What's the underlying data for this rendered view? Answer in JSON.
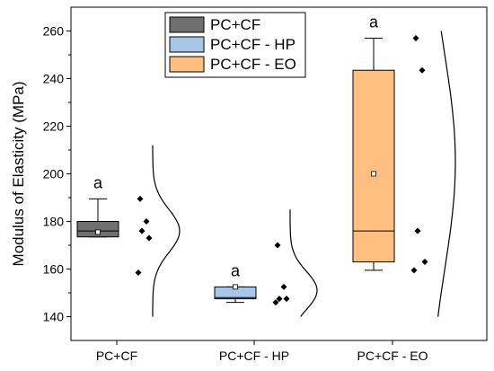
{
  "chart_data": {
    "type": "box",
    "ylabel": "Modulus of Elasticity (MPa)",
    "xlabel": "",
    "ylim": [
      130,
      270
    ],
    "yticks": [
      140,
      160,
      180,
      200,
      220,
      240,
      260
    ],
    "legend_position": "top-center",
    "grid": false,
    "colors": {
      "PC+CF": "#6f6f6f",
      "PC+CF - HP": "#a8c6e8",
      "PC+CF - EO": "#ffbf80"
    },
    "series": [
      {
        "name": "PC+CF",
        "category": "PC+CF",
        "box": {
          "whisker_low": 173.5,
          "q1": 173.5,
          "median": 176,
          "q3": 180,
          "whisker_high": 189.5,
          "mean": 175.5
        },
        "points": [
          158.5,
          173,
          176,
          180,
          189.5
        ],
        "density": {
          "center": 176,
          "sd": 9,
          "y_from": 140,
          "y_to": 212
        },
        "significance_label": "a"
      },
      {
        "name": "PC+CF - HP",
        "category": "PC+CF - HP",
        "box": {
          "whisker_low": 146,
          "q1": 147.5,
          "median": 148,
          "q3": 152.5,
          "whisker_high": 152.5,
          "mean": 152.5
        },
        "points": [
          146,
          147.5,
          147.5,
          152.5,
          170
        ],
        "density": {
          "center": 151,
          "sd": 8,
          "y_from": 140,
          "y_to": 185
        },
        "significance_label": "a"
      },
      {
        "name": "PC+CF - EO",
        "category": "PC+CF - EO",
        "box": {
          "whisker_low": 159.5,
          "q1": 163,
          "median": 176,
          "q3": 243.5,
          "whisker_high": 257,
          "mean": 200
        },
        "points": [
          159.5,
          163,
          176,
          243.5,
          257
        ],
        "density": {
          "center": 205,
          "sd": 45,
          "y_from": 140,
          "y_to": 260
        },
        "significance_label": "a"
      }
    ]
  }
}
